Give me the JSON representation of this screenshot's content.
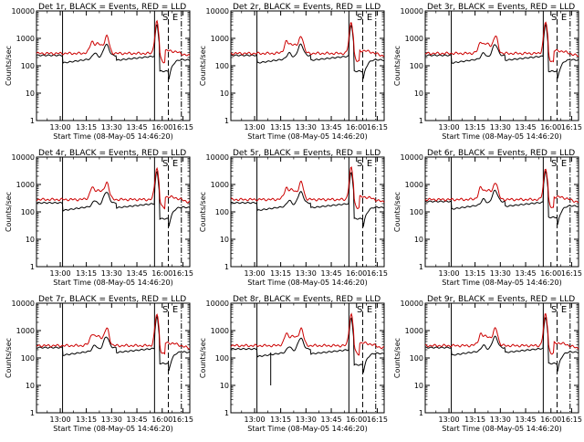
{
  "xtick_labels": [
    "13:00",
    "13:15",
    "13:30",
    "13:45",
    "16:00",
    "16:15"
  ],
  "ytick_labels": [
    "1",
    "10",
    "100",
    "1000",
    "10000"
  ],
  "ylabel": "Counts/sec",
  "xlabel": "Start Time (08-May-05 14:46:20)",
  "annotations": {
    "saa_label": "S",
    "eclipse_label": "E"
  },
  "colors": {
    "events": "#000000",
    "lld": "#cc0000"
  },
  "chart_data": [
    {
      "type": "line",
      "title": "Det 1r, BLACK = Events, RED = LLD",
      "ylim": [
        1,
        10000
      ],
      "yscale": "log",
      "series": [
        {
          "name": "Events",
          "color": "#000000"
        },
        {
          "name": "LLD",
          "color": "#cc0000"
        }
      ]
    },
    {
      "type": "line",
      "title": "Det 2r, BLACK = Events, RED = LLD",
      "ylim": [
        1,
        10000
      ],
      "yscale": "log",
      "series": [
        {
          "name": "Events",
          "color": "#000000"
        },
        {
          "name": "LLD",
          "color": "#cc0000"
        }
      ]
    },
    {
      "type": "line",
      "title": "Det 3r, BLACK = Events, RED = LLD",
      "ylim": [
        1,
        10000
      ],
      "yscale": "log",
      "series": [
        {
          "name": "Events",
          "color": "#000000"
        },
        {
          "name": "LLD",
          "color": "#cc0000"
        }
      ]
    },
    {
      "type": "line",
      "title": "Det 4r, BLACK = Events, RED = LLD",
      "ylim": [
        1,
        10000
      ],
      "yscale": "log",
      "series": [
        {
          "name": "Events",
          "color": "#000000"
        },
        {
          "name": "LLD",
          "color": "#cc0000"
        }
      ]
    },
    {
      "type": "line",
      "title": "Det 5r, BLACK = Events, RED = LLD",
      "ylim": [
        1,
        10000
      ],
      "yscale": "log",
      "series": [
        {
          "name": "Events",
          "color": "#000000"
        },
        {
          "name": "LLD",
          "color": "#cc0000"
        }
      ]
    },
    {
      "type": "line",
      "title": "Det 6r, BLACK = Events, RED = LLD",
      "ylim": [
        1,
        10000
      ],
      "yscale": "log",
      "series": [
        {
          "name": "Events",
          "color": "#000000"
        },
        {
          "name": "LLD",
          "color": "#cc0000"
        }
      ]
    },
    {
      "type": "line",
      "title": "Det 7r, BLACK = Events, RED = LLD",
      "ylim": [
        1,
        10000
      ],
      "yscale": "log",
      "series": [
        {
          "name": "Events",
          "color": "#000000"
        },
        {
          "name": "LLD",
          "color": "#cc0000"
        }
      ]
    },
    {
      "type": "line",
      "title": "Det 8r, BLACK = Events, RED = LLD",
      "ylim": [
        1,
        10000
      ],
      "yscale": "log",
      "series": [
        {
          "name": "Events",
          "color": "#000000"
        },
        {
          "name": "LLD",
          "color": "#cc0000"
        }
      ]
    },
    {
      "type": "line",
      "title": "Det 9r, BLACK = Events, RED = LLD",
      "ylim": [
        1,
        10000
      ],
      "yscale": "log",
      "series": [
        {
          "name": "Events",
          "color": "#000000"
        },
        {
          "name": "LLD",
          "color": "#cc0000"
        }
      ]
    }
  ]
}
